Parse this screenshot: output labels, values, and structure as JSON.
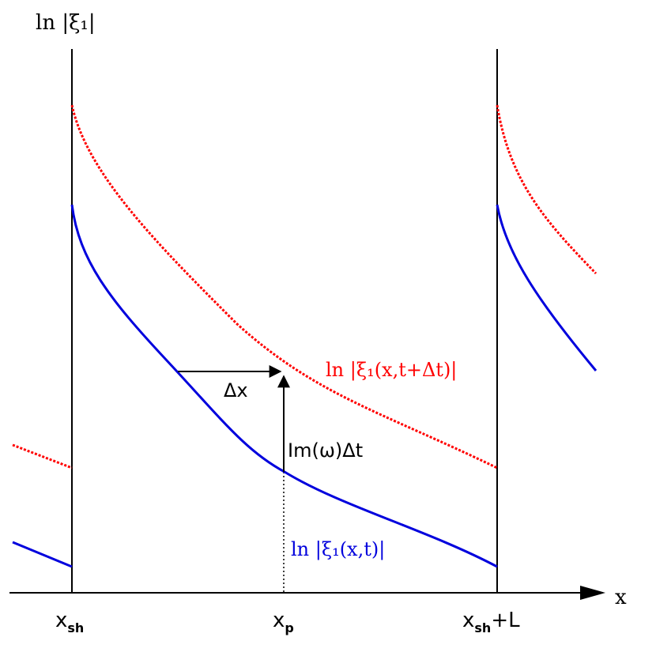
{
  "labels": {
    "y_axis": "ln |ξ₁|",
    "x_axis": "x",
    "x_sh": "x",
    "x_sh_sub": "sh",
    "x_p": "x",
    "x_p_sub": "p",
    "x_sh_L": "x",
    "x_sh_L_sub": "sh",
    "x_sh_L_suffix": "+L",
    "delta_x": "Δx",
    "im_omega_dt": "Im(ω)Δt",
    "red_curve": "ln |ξ₁(x,t+Δt)|",
    "blue_curve": "ln |ξ₁(x,t)|"
  },
  "colors": {
    "axis": "#000000",
    "blue_curve": "#0000dd",
    "red_curve": "#ff0000"
  },
  "curves": {
    "blue": {
      "name": "ln |ξ₁(x,t)|",
      "style": "solid"
    },
    "red": {
      "name": "ln |ξ₁(x,t+Δt)|",
      "style": "dotted"
    }
  }
}
